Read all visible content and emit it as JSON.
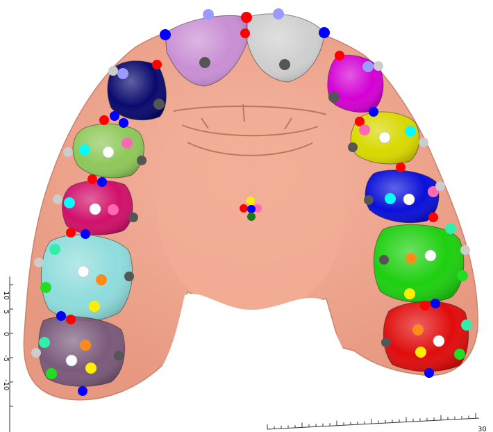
{
  "scene": {
    "background": "#ffffff",
    "gum_color": "#f0a48c",
    "gum_shadow": "#c9826c",
    "palate_color": "#f2ad95"
  },
  "teeth": [
    {
      "id": "upper-left-central-incisor",
      "color": "#c98fd4"
    },
    {
      "id": "upper-right-central-incisor",
      "color": "#cfcfcf"
    },
    {
      "id": "upper-left-lateral-incisor",
      "color": "#0a0a6e"
    },
    {
      "id": "upper-right-lateral-incisor",
      "color": "#d400d4"
    },
    {
      "id": "upper-left-canine",
      "color": "#8ec85a"
    },
    {
      "id": "upper-right-canine",
      "color": "#d8d800"
    },
    {
      "id": "upper-left-first-premolar",
      "color": "#d0106a"
    },
    {
      "id": "upper-right-first-premolar",
      "color": "#0a10d8"
    },
    {
      "id": "upper-left-first-molar",
      "color": "#8fdcdc"
    },
    {
      "id": "upper-right-first-molar",
      "color": "#1ecf10"
    },
    {
      "id": "upper-left-second-molar",
      "color": "#7a5a7a"
    },
    {
      "id": "upper-right-second-molar",
      "color": "#e00c0c"
    }
  ],
  "landmark_colors": {
    "red": "#ff0000",
    "blue": "#0000ff",
    "gray": "#555555",
    "light_gray": "#cccccc",
    "lavender": "#9a9aff",
    "cyan": "#00ffff",
    "pink": "#ff69b4",
    "white": "#ffffff",
    "orange": "#ff8c1a",
    "yellow": "#ffee00",
    "green": "#22dd22",
    "mint": "#33eeaa",
    "dark_green": "#1a7a1a"
  },
  "axes": {
    "left_ticks": [
      "10",
      "5",
      "0",
      "-5",
      "-10"
    ],
    "bottom_end_label": "30"
  }
}
